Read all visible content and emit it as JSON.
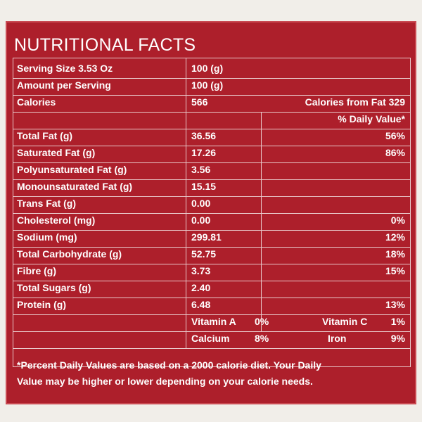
{
  "title": "NUTRITIONAL FACTS",
  "serving_size": {
    "label": "Serving Size 3.53 Oz",
    "value": "100 (g)"
  },
  "amount_per_serving": {
    "label": "Amount per Serving",
    "value": "100 (g)"
  },
  "calories": {
    "label": "Calories",
    "value": "566",
    "from_fat": "Calories from Fat 329"
  },
  "daily_value_header": "% Daily Value*",
  "rows": [
    {
      "label": "Total Fat (g)",
      "value": "36.56",
      "dv": "56%"
    },
    {
      "label": "Saturated Fat (g)",
      "value": "17.26",
      "dv": "86%"
    },
    {
      "label": "Polyunsaturated Fat (g)",
      "value": "3.56",
      "dv": ""
    },
    {
      "label": "Monounsaturated Fat (g)",
      "value": "15.15",
      "dv": ""
    },
    {
      "label": "Trans Fat (g)",
      "value": "0.00",
      "dv": ""
    },
    {
      "label": "Cholesterol (mg)",
      "value": "0.00",
      "dv": "0%"
    },
    {
      "label": "Sodium (mg)",
      "value": "299.81",
      "dv": "12%"
    },
    {
      "label": "Total Carbohydrate (g)",
      "value": "52.75",
      "dv": "18%"
    },
    {
      "label": "Fibre (g)",
      "value": "3.73",
      "dv": "15%"
    },
    {
      "label": "Total Sugars (g)",
      "value": "2.40",
      "dv": ""
    },
    {
      "label": "Protein (g)",
      "value": "6.48",
      "dv": "13%"
    }
  ],
  "vitamins": {
    "vitamin_a": {
      "label": "Vitamin A",
      "value": "0%"
    },
    "vitamin_c": {
      "label": "Vitamin C",
      "value": "1%"
    },
    "calcium": {
      "label": "Calcium",
      "value": "8%"
    },
    "iron": {
      "label": "Iron",
      "value": "9%"
    }
  },
  "footnote_line1": "*Percent Daily Values are based on a 2000 calorie diet. Your Daily",
  "footnote_line2": "Value may be higher or lower depending on your calorie needs.",
  "colors": {
    "panel": "#ad1f2b",
    "text": "#ffffff",
    "rule": "#e9c8ca"
  }
}
